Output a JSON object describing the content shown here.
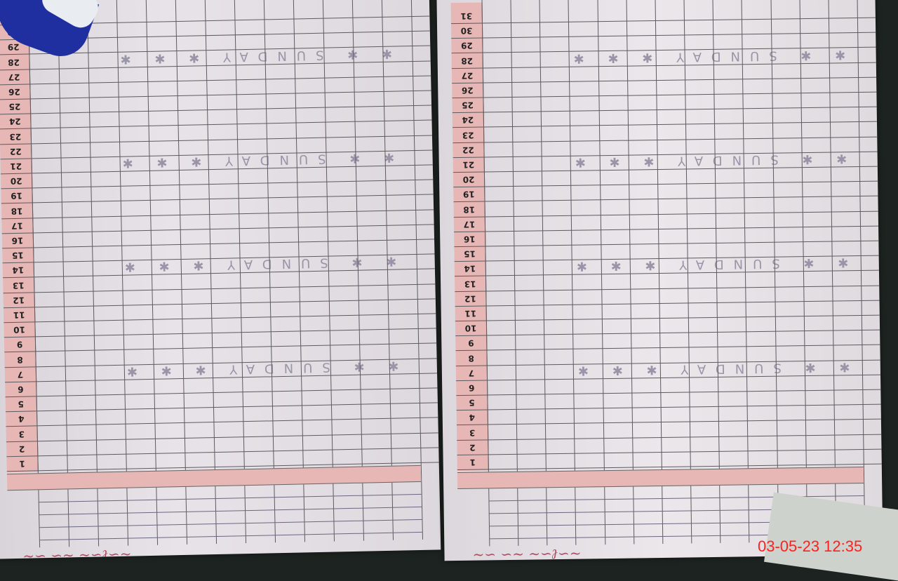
{
  "register": {
    "days": [
      1,
      2,
      3,
      4,
      5,
      6,
      7,
      8,
      9,
      10,
      11,
      12,
      13,
      14,
      15,
      16,
      17,
      18,
      19,
      20,
      21,
      22,
      23,
      24,
      25,
      26,
      27,
      28,
      29,
      30,
      31
    ],
    "sunday_days": [
      7,
      14,
      21,
      28
    ],
    "sunday_label": "SUNDAY",
    "columns": 13
  },
  "camera": {
    "timestamp": "03-05-23  12:35"
  },
  "colors": {
    "day_column": "#e7b7b6",
    "grid": "#5d5a60",
    "timestamp": "#ff2020"
  }
}
